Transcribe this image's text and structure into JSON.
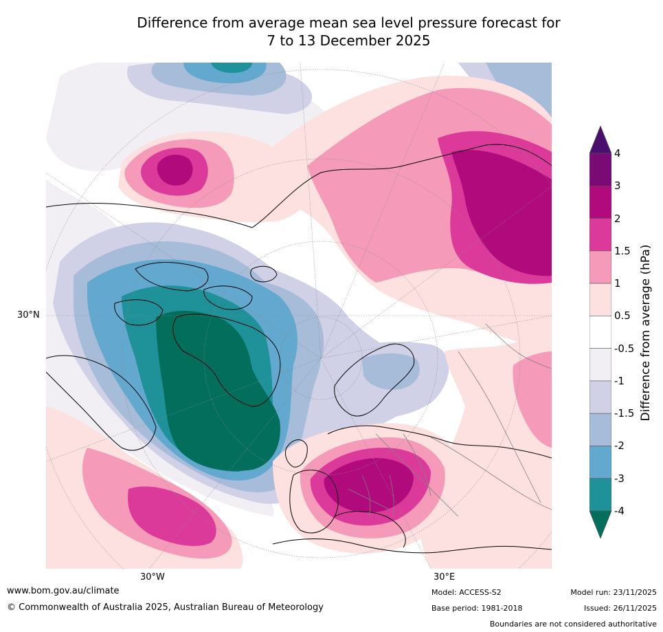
{
  "title": {
    "line1": "Difference from average mean sea level pressure forecast for",
    "line2": "7 to 13 December 2025"
  },
  "map": {
    "region": "North Atlantic, Greenland, Europe and northern Africa",
    "lat_label_left": "30°N",
    "lon_label_west": "30°W",
    "lon_label_east": "30°E"
  },
  "colorbar": {
    "label": "Difference from average (hPa)",
    "ticks": [
      "4",
      "3",
      "2",
      "1.5",
      "1",
      "0.5",
      "-0.5",
      "-1",
      "-1.5",
      "-2",
      "-3",
      "-4"
    ],
    "bins": [
      {
        "range": "> 4",
        "color": "#4a0f6e"
      },
      {
        "range": "3 to 4",
        "color": "#7a0a74"
      },
      {
        "range": "2 to 3",
        "color": "#b00a7d"
      },
      {
        "range": "1.5 to 2",
        "color": "#dc3a9a"
      },
      {
        "range": "1 to 1.5",
        "color": "#f59ab8"
      },
      {
        "range": "0.5 to 1",
        "color": "#fde0e0"
      },
      {
        "range": "-0.5 to 0.5",
        "color": "#ffffff"
      },
      {
        "range": "-1 to -0.5",
        "color": "#f1eef4"
      },
      {
        "range": "-1.5 to -1",
        "color": "#d0d0e6"
      },
      {
        "range": "-2 to -1.5",
        "color": "#a6bcd9"
      },
      {
        "range": "-3 to -2",
        "color": "#63a8cf"
      },
      {
        "range": "-4 to -3",
        "color": "#1f9199"
      },
      {
        "range": "< -4",
        "color": "#036e5b"
      }
    ]
  },
  "footer": {
    "website": "www.bom.gov.au/climate",
    "copyright": "© Commonwealth of Australia 2025, Australian Bureau of Meteorology",
    "model": "Model: ACCESS-S2",
    "base_period": "Base period: 1981-2018",
    "model_run": "Model run: 23/11/2025",
    "issued": "Issued: 26/11/2025",
    "boundaries_note": "Boundaries are not considered authoritative"
  }
}
